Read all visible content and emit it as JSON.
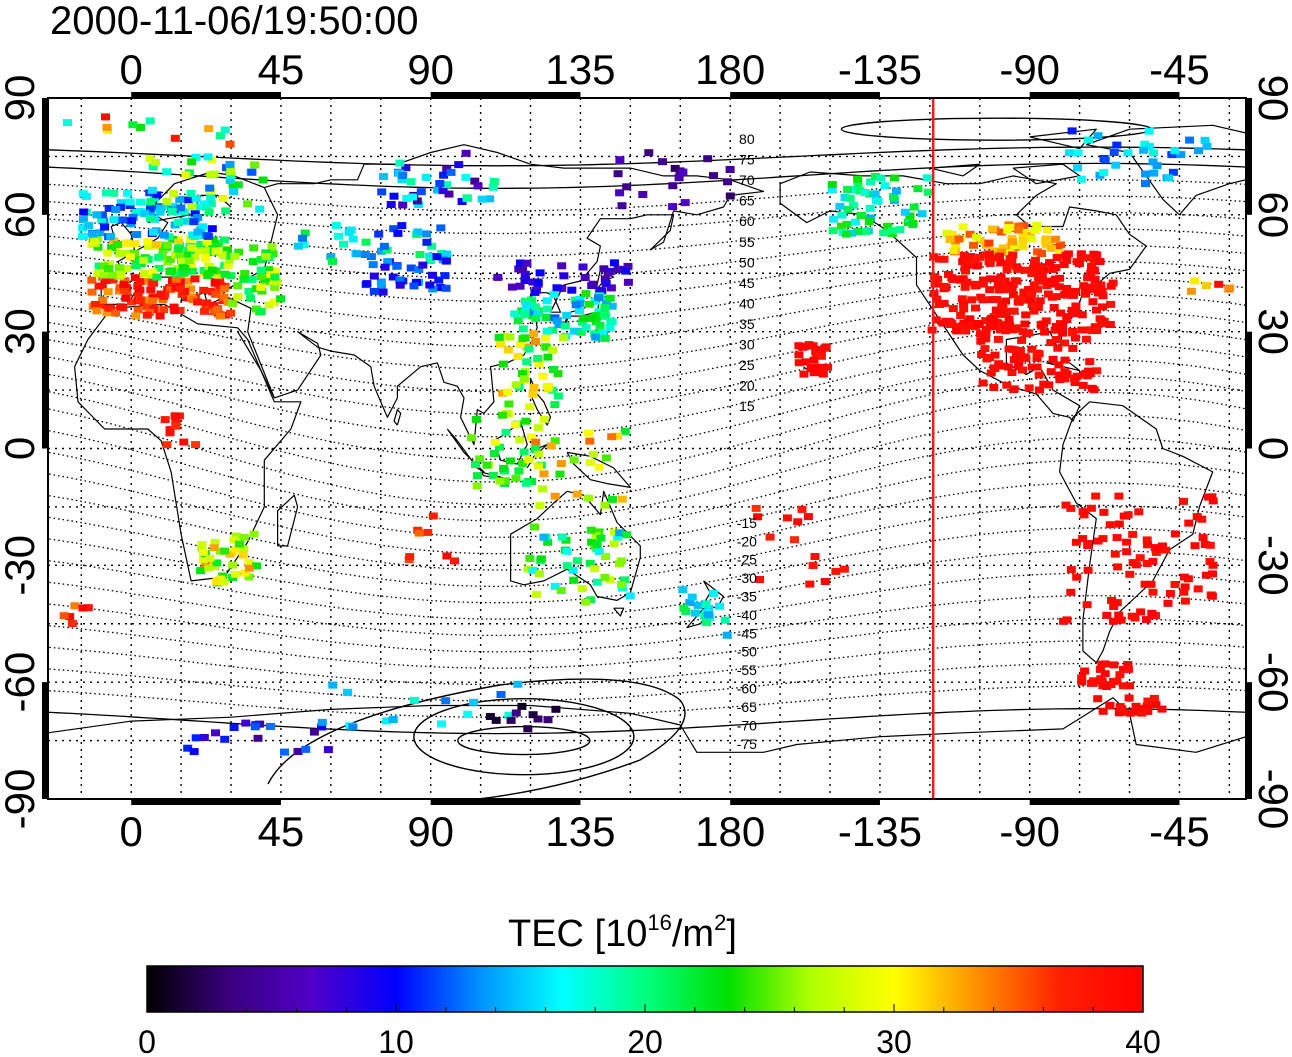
{
  "title": "2000-11-06/19:50:00",
  "map": {
    "projection": "equirectangular",
    "center_longitude": 135,
    "lon_range": [
      -25,
      335
    ],
    "lat_range": [
      -90,
      90
    ],
    "grid": "dotted",
    "lon_tick_values": [
      0,
      45,
      90,
      135,
      180,
      225,
      270,
      315
    ],
    "lon_tick_labels": [
      "0",
      "45",
      "90",
      "135",
      "180",
      "-135",
      "-90",
      "-45"
    ],
    "lat_tick_values": [
      90,
      60,
      30,
      0,
      -30,
      -60,
      -90
    ],
    "lat_tick_labels": [
      "90",
      "60",
      "30",
      "0",
      "-30",
      "-60",
      "-90"
    ],
    "terminator": {
      "color": "#e8201a",
      "longitude": 241
    },
    "contour_labels_north": [
      "80",
      "75",
      "70",
      "65",
      "60",
      "55",
      "50",
      "45",
      "40",
      "35",
      "30",
      "25",
      "20",
      "15"
    ],
    "contour_labels_south": [
      "-15",
      "-20",
      "-25",
      "-30",
      "-35",
      "-40",
      "-45",
      "-50",
      "-55",
      "-60",
      "-65",
      "-70",
      "-75"
    ]
  },
  "colorbar": {
    "label_main": "TEC  [10",
    "label_sup1": "16",
    "label_mid": "/m",
    "label_sup2": "2",
    "label_end": "]",
    "min": 0,
    "max": 40,
    "tick_values": [
      0,
      10,
      20,
      30,
      40
    ],
    "tick_labels": [
      "0",
      "10",
      "20",
      "30",
      "40"
    ],
    "colors": [
      "#000000",
      "#3a0080",
      "#5000c8",
      "#0000ff",
      "#0090ff",
      "#00ffff",
      "#00ff80",
      "#00e000",
      "#b0ff00",
      "#ffff00",
      "#ff9000",
      "#ff2000",
      "#ff0000"
    ]
  }
}
